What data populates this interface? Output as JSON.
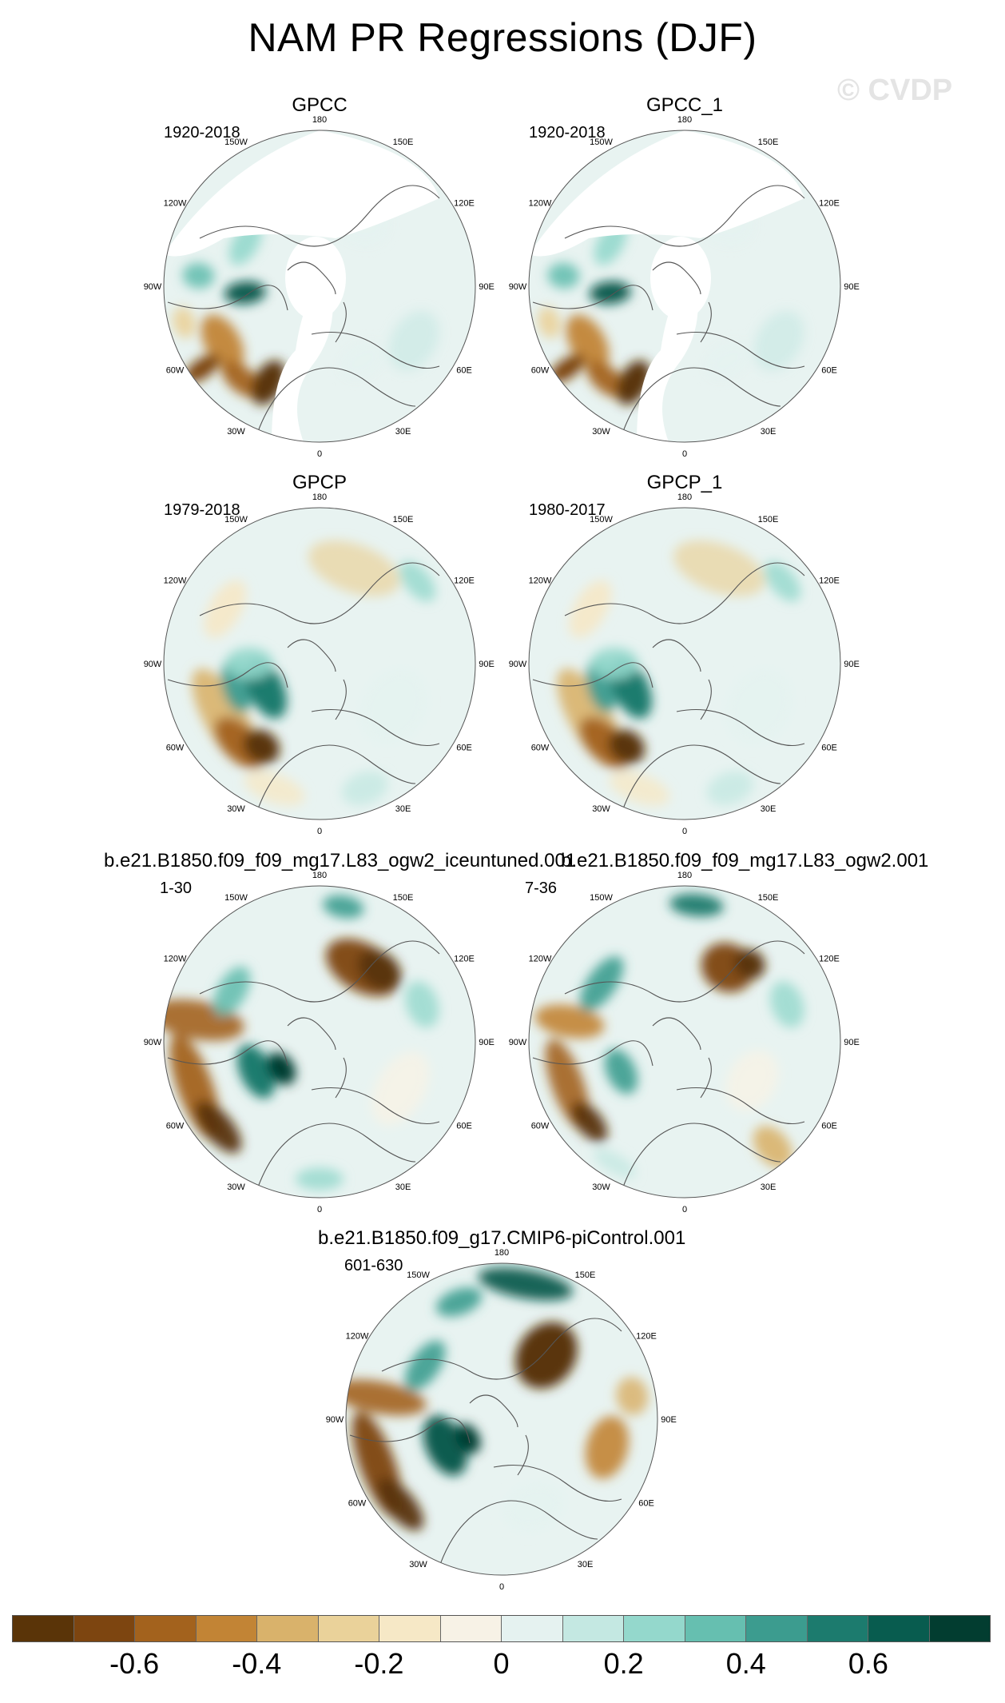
{
  "title": "NAM PR Regressions (DJF)",
  "watermark": "© CVDP",
  "lon_labels": [
    "180",
    "150E",
    "120E",
    "90E",
    "60E",
    "30E",
    "0",
    "30W",
    "60W",
    "90W",
    "120W",
    "150W"
  ],
  "panels": [
    {
      "title": "GPCC",
      "period": "1920-2018",
      "pattern": "gpcc"
    },
    {
      "title": "GPCC_1",
      "period": "1920-2018",
      "pattern": "gpcc"
    },
    {
      "title": "GPCP",
      "period": "1979-2018",
      "pattern": "gpcp"
    },
    {
      "title": "GPCP_1",
      "period": "1980-2017",
      "pattern": "gpcp"
    },
    {
      "title": "b.e21.B1850.f09_f09_mg17.L83_ogw2_iceuntuned.001",
      "period": "1-30",
      "pattern": "model_a"
    },
    {
      "title": "b.e21.B1850.f09_f09_mg17.L83_ogw2.001",
      "period": "7-36",
      "pattern": "model_b"
    },
    {
      "title": "b.e21.B1850.f09_g17.CMIP6-piControl.001",
      "period": "601-630",
      "pattern": "model_c"
    }
  ],
  "colorbar": {
    "colors": [
      "#5a3408",
      "#7d4510",
      "#a3621d",
      "#c28435",
      "#d9b26b",
      "#ead29a",
      "#f6e8c6",
      "#f7f2e6",
      "#e5f2f0",
      "#c4e8e2",
      "#94d8cc",
      "#66bfb0",
      "#3c9c8f",
      "#1c7b6e",
      "#085c4f",
      "#023d30"
    ],
    "tick_labels": [
      "-0.6",
      "-0.4",
      "-0.2",
      "0",
      "0.2",
      "0.4",
      "0.6"
    ],
    "tick_positions": [
      0.125,
      0.25,
      0.375,
      0.5,
      0.625,
      0.75,
      0.875
    ]
  }
}
